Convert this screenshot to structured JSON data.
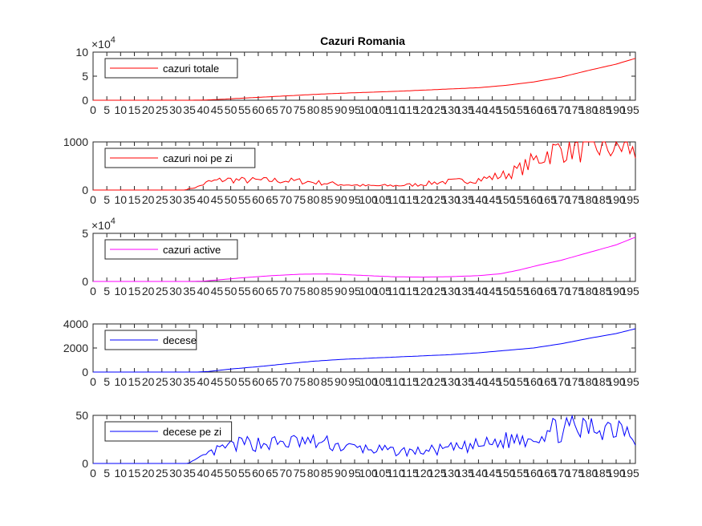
{
  "figure": {
    "title": "Cazuri Romania"
  },
  "chart_data": [
    {
      "type": "line",
      "title": "Cazuri Romania",
      "legend": "cazuri totale",
      "legend_position": "top-left",
      "color": "#ff0000",
      "xlim": [
        0,
        197
      ],
      "ylim": [
        0,
        100000
      ],
      "ytick_labels": [
        "0",
        "5",
        "10"
      ],
      "exponent_label": "×10",
      "exponent_power": "4",
      "anchors": [
        [
          0,
          0
        ],
        [
          35,
          0
        ],
        [
          40,
          300
        ],
        [
          45,
          1500
        ],
        [
          50,
          3000
        ],
        [
          60,
          6000
        ],
        [
          70,
          9000
        ],
        [
          80,
          12000
        ],
        [
          90,
          14500
        ],
        [
          100,
          16500
        ],
        [
          110,
          18500
        ],
        [
          120,
          21000
        ],
        [
          130,
          23500
        ],
        [
          140,
          26000
        ],
        [
          150,
          31000
        ],
        [
          160,
          38000
        ],
        [
          170,
          48000
        ],
        [
          180,
          62000
        ],
        [
          190,
          75000
        ],
        [
          197,
          87000
        ]
      ],
      "noise": 0
    },
    {
      "type": "line",
      "legend": "cazuri noi pe zi",
      "legend_position": "top-left",
      "color": "#ff0000",
      "xlim": [
        0,
        197
      ],
      "ylim": [
        0,
        1500
      ],
      "ytick_labels": [
        "0",
        "1000"
      ],
      "anchors": [
        [
          0,
          0
        ],
        [
          33,
          0
        ],
        [
          38,
          100
        ],
        [
          42,
          250
        ],
        [
          48,
          330
        ],
        [
          55,
          300
        ],
        [
          65,
          300
        ],
        [
          75,
          280
        ],
        [
          82,
          230
        ],
        [
          90,
          180
        ],
        [
          100,
          130
        ],
        [
          110,
          140
        ],
        [
          118,
          170
        ],
        [
          125,
          240
        ],
        [
          135,
          290
        ],
        [
          142,
          350
        ],
        [
          150,
          480
        ],
        [
          155,
          650
        ],
        [
          160,
          900
        ],
        [
          165,
          1150
        ],
        [
          170,
          1280
        ],
        [
          175,
          1300
        ],
        [
          180,
          1250
        ],
        [
          185,
          1350
        ],
        [
          190,
          1280
        ],
        [
          194,
          1400
        ],
        [
          197,
          1050
        ]
      ],
      "noise": 0.35,
      "seed": 7
    },
    {
      "type": "line",
      "legend": "cazuri active",
      "legend_position": "top-left",
      "color": "#ff00ff",
      "xlim": [
        0,
        197
      ],
      "ylim": [
        0,
        50000
      ],
      "ytick_labels": [
        "0",
        "5"
      ],
      "exponent_label": "×10",
      "exponent_power": "4",
      "anchors": [
        [
          0,
          0
        ],
        [
          35,
          0
        ],
        [
          40,
          300
        ],
        [
          45,
          1500
        ],
        [
          55,
          4000
        ],
        [
          65,
          6000
        ],
        [
          75,
          7500
        ],
        [
          85,
          7800
        ],
        [
          90,
          7300
        ],
        [
          100,
          6000
        ],
        [
          110,
          4800
        ],
        [
          120,
          4500
        ],
        [
          130,
          5000
        ],
        [
          140,
          6000
        ],
        [
          148,
          8000
        ],
        [
          155,
          12000
        ],
        [
          162,
          17000
        ],
        [
          170,
          22000
        ],
        [
          180,
          30000
        ],
        [
          190,
          38000
        ],
        [
          197,
          46000
        ]
      ],
      "noise": 0
    },
    {
      "type": "line",
      "legend": "decese",
      "legend_position": "top-left",
      "color": "#0000ff",
      "xlim": [
        0,
        197
      ],
      "ylim": [
        0,
        4000
      ],
      "ytick_labels": [
        "0",
        "2000",
        "4000"
      ],
      "anchors": [
        [
          0,
          0
        ],
        [
          38,
          0
        ],
        [
          42,
          50
        ],
        [
          50,
          250
        ],
        [
          60,
          450
        ],
        [
          70,
          680
        ],
        [
          80,
          900
        ],
        [
          90,
          1050
        ],
        [
          100,
          1150
        ],
        [
          110,
          1250
        ],
        [
          120,
          1350
        ],
        [
          130,
          1450
        ],
        [
          140,
          1600
        ],
        [
          150,
          1800
        ],
        [
          160,
          2000
        ],
        [
          170,
          2350
        ],
        [
          180,
          2800
        ],
        [
          190,
          3200
        ],
        [
          197,
          3600
        ]
      ],
      "noise": 0
    },
    {
      "type": "line",
      "legend": "decese pe zi",
      "legend_position": "top-left",
      "color": "#0000ff",
      "xlim": [
        0,
        197
      ],
      "ylim": [
        0,
        60
      ],
      "ytick_labels": [
        "0",
        "50"
      ],
      "anchors": [
        [
          0,
          0
        ],
        [
          34,
          0
        ],
        [
          38,
          5
        ],
        [
          42,
          12
        ],
        [
          48,
          20
        ],
        [
          55,
          25
        ],
        [
          65,
          25
        ],
        [
          75,
          27
        ],
        [
          85,
          25
        ],
        [
          92,
          20
        ],
        [
          100,
          18
        ],
        [
          110,
          15
        ],
        [
          118,
          15
        ],
        [
          125,
          17
        ],
        [
          135,
          20
        ],
        [
          145,
          25
        ],
        [
          152,
          30
        ],
        [
          160,
          35
        ],
        [
          165,
          40
        ],
        [
          170,
          43
        ],
        [
          178,
          42
        ],
        [
          185,
          47
        ],
        [
          190,
          45
        ],
        [
          193,
          52
        ],
        [
          197,
          35
        ]
      ],
      "noise": 0.4,
      "seed": 13
    }
  ],
  "xtick_labels": [
    "0",
    "5",
    "10",
    "15",
    "20",
    "25",
    "30",
    "35",
    "40",
    "45",
    "50",
    "55",
    "60",
    "65",
    "70",
    "75",
    "80",
    "85",
    "90",
    "95",
    "100",
    "105",
    "110",
    "115",
    "120",
    "125",
    "130",
    "135",
    "140",
    "145",
    "150",
    "155",
    "160",
    "165",
    "170",
    "175",
    "180",
    "185",
    "190",
    "195"
  ]
}
